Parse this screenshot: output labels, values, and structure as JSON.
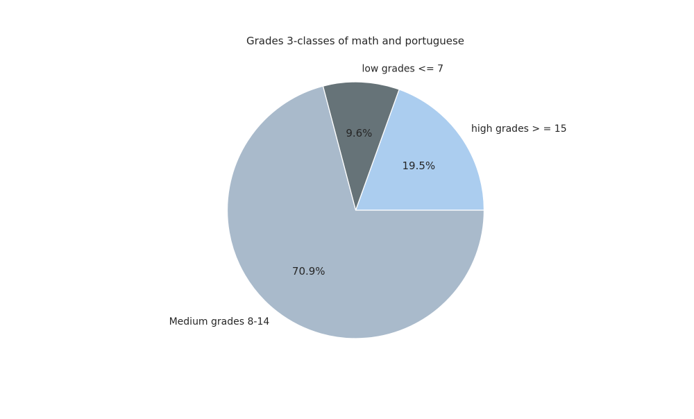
{
  "chart_data": {
    "type": "pie",
    "title": "Grades 3-classes of math and portuguese",
    "categories": [
      "high grades > = 15",
      "low grades <= 7",
      "Medium grades 8-14"
    ],
    "values": [
      19.5,
      9.6,
      70.9
    ],
    "value_labels": [
      "19.5%",
      "9.6%",
      "70.9%"
    ],
    "colors": [
      "#abcdef",
      "#667378",
      "#a9bacb"
    ],
    "start_angle_deg": 0,
    "direction": "counterclockwise",
    "legend": "none"
  }
}
